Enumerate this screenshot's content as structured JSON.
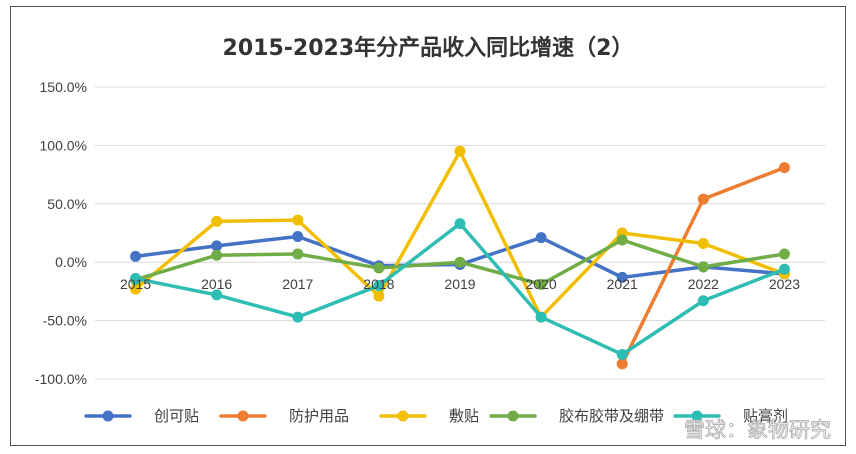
{
  "chart_data": {
    "type": "line",
    "title": "2015-2023年分产品收入同比增速（2）",
    "categories": [
      "2015",
      "2016",
      "2017",
      "2018",
      "2019",
      "2020",
      "2021",
      "2022",
      "2023"
    ],
    "ylim": [
      -100,
      150
    ],
    "yticks": [
      150,
      100,
      50,
      0,
      -50,
      -100
    ],
    "ytick_labels": [
      "150.0%",
      "100.0%",
      "50.0%",
      "0.0%",
      "-50.0%",
      "-100.0%"
    ],
    "grid": true,
    "legend_position": "bottom",
    "series": [
      {
        "name": "创可贴",
        "color": "#4472C4",
        "values": [
          5,
          14,
          22,
          -3,
          -2,
          21,
          -13,
          -4,
          -10
        ]
      },
      {
        "name": "防护用品",
        "color": "#ED7D31",
        "values": [
          null,
          null,
          null,
          null,
          null,
          null,
          -87,
          54,
          81
        ]
      },
      {
        "name": "敷贴",
        "color": "#F2BE00",
        "values": [
          -23,
          35,
          36,
          -29,
          95,
          -47,
          25,
          16,
          -10
        ]
      },
      {
        "name": "胶布胶带及绷带",
        "color": "#70AD47",
        "values": [
          -15,
          6,
          7,
          -5,
          0,
          -19,
          19,
          -4,
          7
        ]
      },
      {
        "name": "贴膏剂",
        "color": "#2EBDB2",
        "values": [
          -14,
          -28,
          -47,
          -20,
          33,
          -47,
          -79,
          -33,
          -6
        ]
      }
    ]
  },
  "watermark": {
    "text": "雪球：象物研究"
  }
}
